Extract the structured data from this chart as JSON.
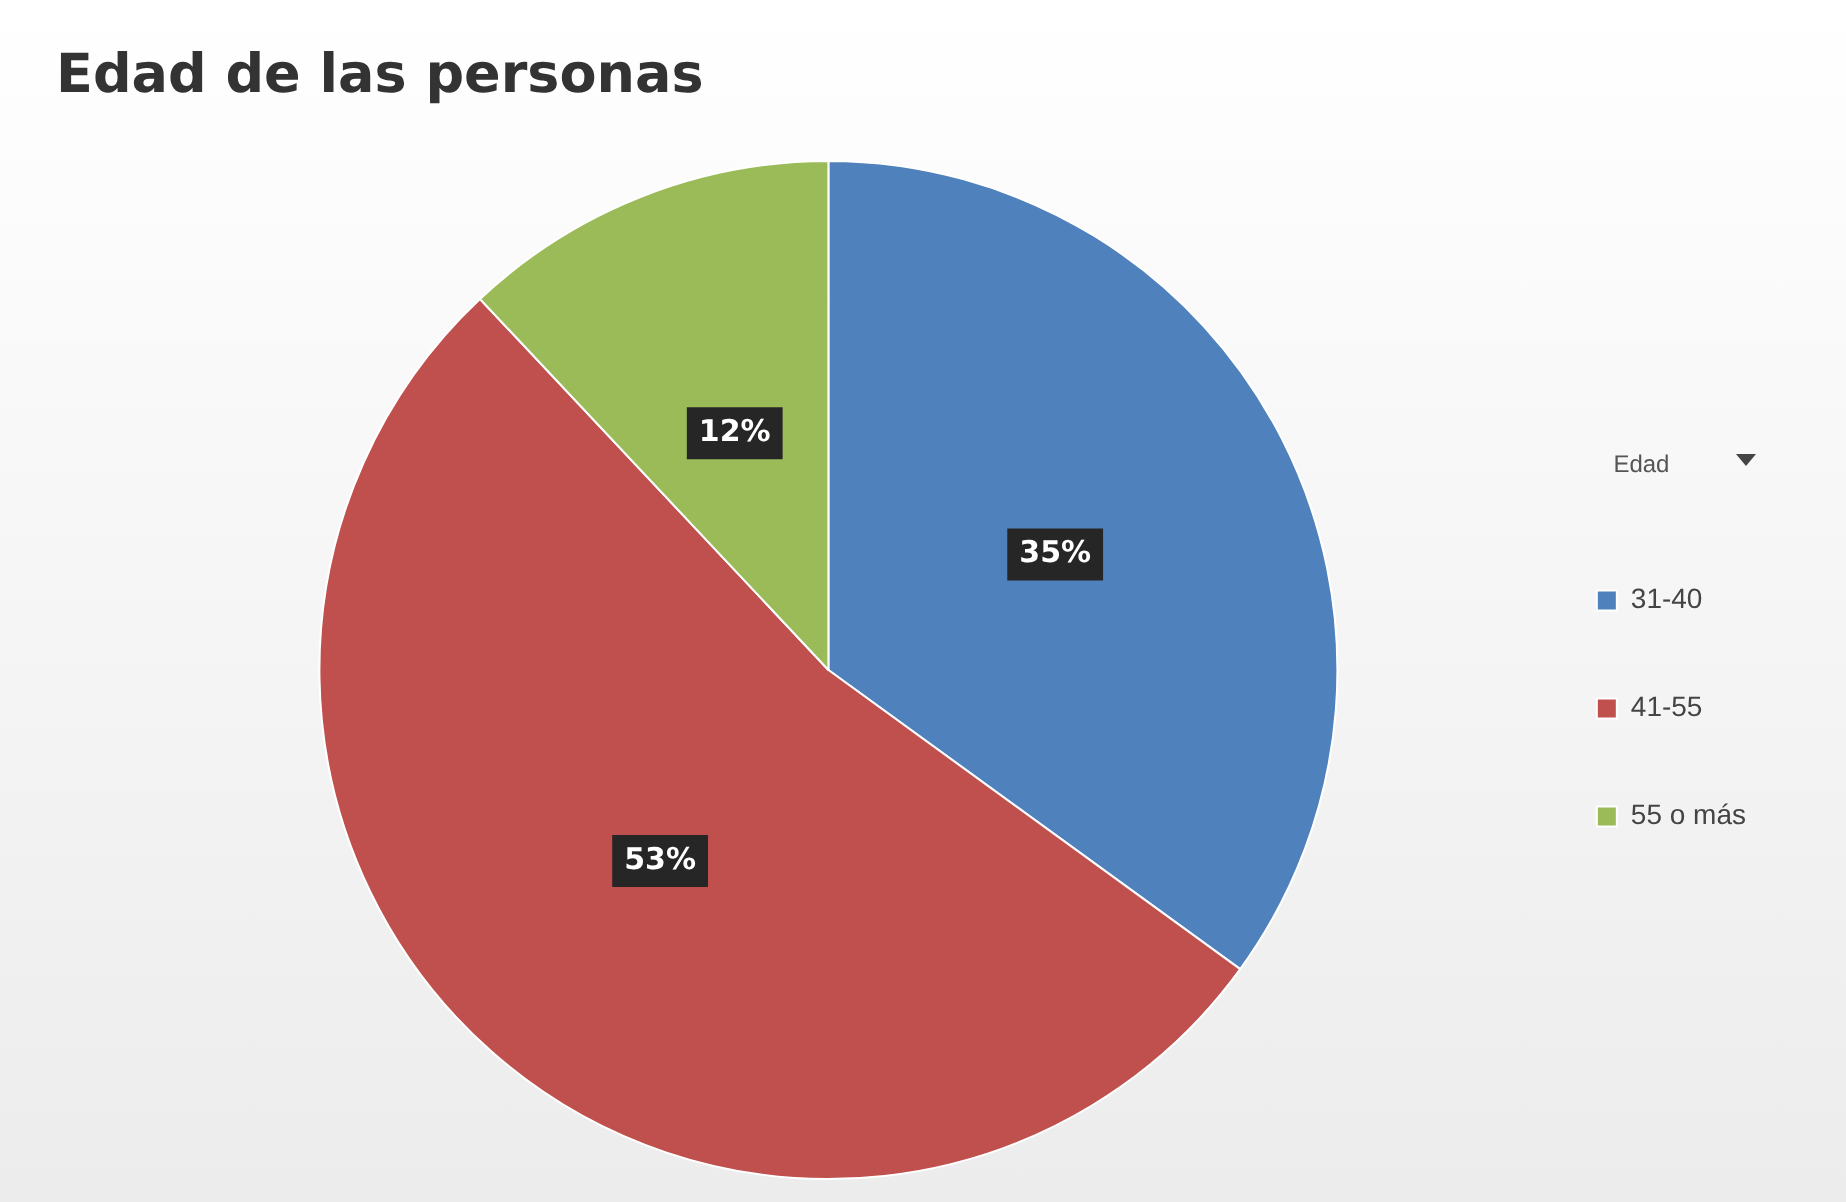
{
  "chart_data": {
    "type": "pie",
    "title": "Edad de las personas",
    "legend_title": "Edad",
    "legend": "right",
    "categories": [
      "31-40",
      "41-55",
      "55 o más"
    ],
    "values": [
      35,
      53,
      12
    ],
    "value_labels": [
      "35%",
      "53%",
      "12%"
    ],
    "colors": [
      "#4f81bd",
      "#c0504d",
      "#9bbb59"
    ]
  }
}
